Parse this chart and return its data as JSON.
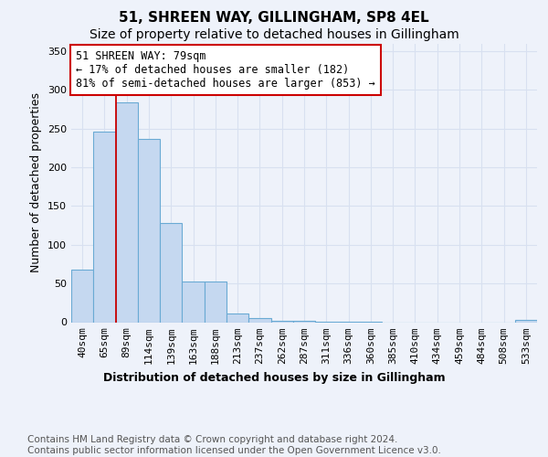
{
  "title": "51, SHREEN WAY, GILLINGHAM, SP8 4EL",
  "subtitle": "Size of property relative to detached houses in Gillingham",
  "xlabel": "Distribution of detached houses by size in Gillingham",
  "ylabel": "Number of detached properties",
  "bar_color": "#c5d8f0",
  "bar_edge_color": "#6aaad4",
  "background_color": "#eef2fa",
  "grid_color": "#d8e0f0",
  "categories": [
    "40sqm",
    "65sqm",
    "89sqm",
    "114sqm",
    "139sqm",
    "163sqm",
    "188sqm",
    "213sqm",
    "237sqm",
    "262sqm",
    "287sqm",
    "311sqm",
    "336sqm",
    "360sqm",
    "385sqm",
    "410sqm",
    "434sqm",
    "459sqm",
    "484sqm",
    "508sqm",
    "533sqm"
  ],
  "values": [
    68,
    246,
    284,
    237,
    128,
    53,
    53,
    11,
    5,
    2,
    2,
    1,
    1,
    1,
    0,
    0,
    0,
    0,
    0,
    0,
    3
  ],
  "ylim": [
    0,
    360
  ],
  "yticks": [
    0,
    50,
    100,
    150,
    200,
    250,
    300,
    350
  ],
  "property_line_x": 2.0,
  "property_line_color": "#cc0000",
  "annotation_text": "51 SHREEN WAY: 79sqm\n← 17% of detached houses are smaller (182)\n81% of semi-detached houses are larger (853) →",
  "annotation_box_facecolor": "#ffffff",
  "annotation_box_edgecolor": "#cc0000",
  "footer_text": "Contains HM Land Registry data © Crown copyright and database right 2024.\nContains public sector information licensed under the Open Government Licence v3.0.",
  "title_fontsize": 11,
  "subtitle_fontsize": 10,
  "xlabel_fontsize": 9,
  "ylabel_fontsize": 9,
  "tick_fontsize": 8,
  "annotation_fontsize": 8.5,
  "footer_fontsize": 7.5
}
